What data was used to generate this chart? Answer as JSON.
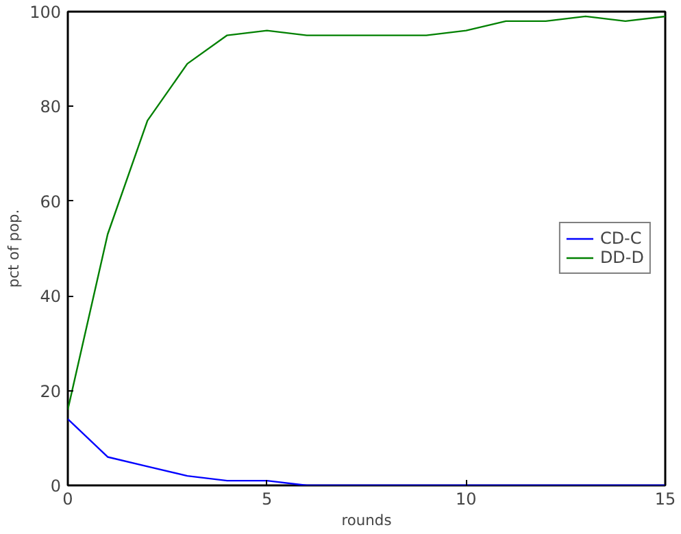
{
  "chart_data": {
    "type": "line",
    "xlabel": "rounds",
    "ylabel": "pct of pop.",
    "x": [
      0,
      1,
      2,
      3,
      4,
      5,
      6,
      7,
      8,
      9,
      10,
      11,
      12,
      13,
      14,
      15
    ],
    "xlim": [
      0,
      15
    ],
    "xticks": [
      0,
      5,
      10,
      15
    ],
    "ylim": [
      0,
      100
    ],
    "yticks": [
      0,
      20,
      40,
      60,
      80,
      100
    ],
    "series": [
      {
        "name": "CD-C",
        "color": "#0000ff",
        "values": [
          14,
          6,
          4,
          2,
          1,
          1,
          0,
          0,
          0,
          0,
          0,
          0,
          0,
          0,
          0,
          0
        ]
      },
      {
        "name": "DD-D",
        "color": "#008000",
        "values": [
          16,
          53,
          77,
          89,
          95,
          96,
          95,
          95,
          95,
          95,
          96,
          98,
          98,
          99,
          98,
          99
        ]
      }
    ],
    "legend": "right",
    "grid": false,
    "line_style": "solid",
    "marker": "none"
  }
}
